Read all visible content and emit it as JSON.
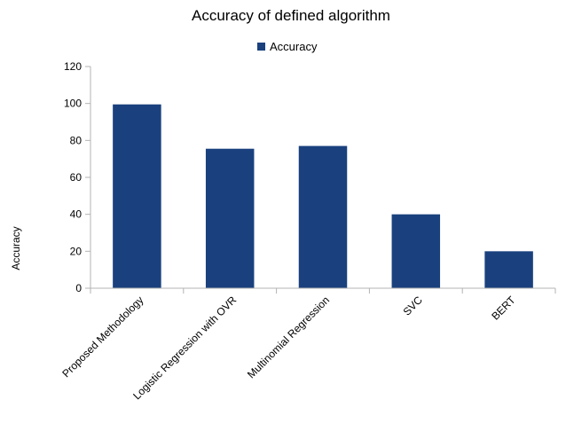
{
  "chart_data": {
    "type": "bar",
    "title": "Accuracy of defined algorithm",
    "xlabel": "",
    "ylabel": "Accuracy",
    "categories": [
      "Proposed Methodology",
      "Logistic Regression with OVR",
      "Multinomial Regression",
      "SVC",
      "BERT"
    ],
    "series": [
      {
        "name": "Accuracy",
        "values": [
          99.5,
          75.5,
          77,
          40,
          20
        ],
        "color": "#1a417e"
      }
    ],
    "ylim": [
      0,
      120
    ],
    "yticks": [
      0,
      20,
      40,
      60,
      80,
      100,
      120
    ],
    "grid": false,
    "legend": "top-center"
  }
}
